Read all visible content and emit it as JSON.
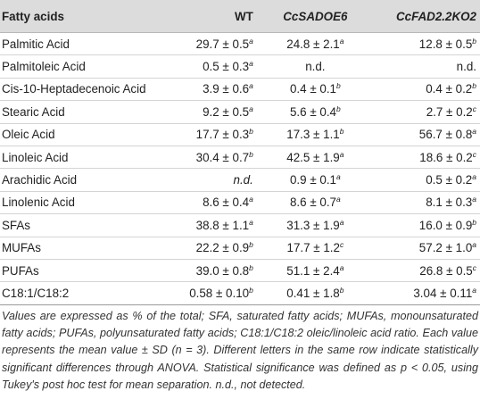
{
  "table": {
    "columns": [
      {
        "label": "Fatty acids"
      },
      {
        "label": "WT"
      },
      {
        "label": "CcSADOE6"
      },
      {
        "label": "CcFAD2.2KO2"
      }
    ],
    "rows": [
      {
        "name": "Palmitic Acid",
        "cells": [
          {
            "text": "29.7 ± 0.5",
            "sup": "a"
          },
          {
            "text": "24.8 ± 2.1",
            "sup": "a"
          },
          {
            "text": "12.8 ± 0.5",
            "sup": "b"
          }
        ]
      },
      {
        "name": "Palmitoleic Acid",
        "cells": [
          {
            "text": "0.5 ± 0.3",
            "sup": "a"
          },
          {
            "text": "n.d."
          },
          {
            "text": "n.d."
          }
        ]
      },
      {
        "name": "Cis-10-Heptadecenoic Acid",
        "cells": [
          {
            "text": "3.9 ± 0.6",
            "sup": "a"
          },
          {
            "text": "0.4 ± 0.1",
            "sup": "b"
          },
          {
            "text": "0.4 ± 0.2",
            "sup": "b"
          }
        ]
      },
      {
        "name": "Stearic Acid",
        "cells": [
          {
            "text": "9.2 ± 0.5",
            "sup": "a"
          },
          {
            "text": "5.6 ± 0.4",
            "sup": "b"
          },
          {
            "text": "2.7 ± 0.2",
            "sup": "c"
          }
        ]
      },
      {
        "name": "Oleic Acid",
        "cells": [
          {
            "text": "17.7 ± 0.3",
            "sup": "b"
          },
          {
            "text": "17.3 ± 1.1",
            "sup": "b"
          },
          {
            "text": "56.7 ± 0.8",
            "sup": "a"
          }
        ]
      },
      {
        "name": "Linoleic Acid",
        "cells": [
          {
            "text": "30.4 ± 0.7",
            "sup": "b"
          },
          {
            "text": "42.5 ± 1.9",
            "sup": "a"
          },
          {
            "text": "18.6 ± 0.2",
            "sup": "c"
          }
        ]
      },
      {
        "name": "Arachidic Acid",
        "cells": [
          {
            "text": "n.d.",
            "italic": true
          },
          {
            "text": "0.9 ± 0.1",
            "sup": "a"
          },
          {
            "text": "0.5 ± 0.2",
            "sup": "a"
          }
        ]
      },
      {
        "name": "Linolenic Acid",
        "cells": [
          {
            "text": "8.6 ± 0.4",
            "sup": "a"
          },
          {
            "text": "8.6 ± 0.7",
            "sup": "a"
          },
          {
            "text": "8.1 ± 0.3",
            "sup": "a"
          }
        ]
      },
      {
        "name": "SFAs",
        "cells": [
          {
            "text": "38.8 ± 1.1",
            "sup": "a"
          },
          {
            "text": "31.3 ± 1.9",
            "sup": "a"
          },
          {
            "text": "16.0 ± 0.9",
            "sup": "b"
          }
        ]
      },
      {
        "name": "MUFAs",
        "cells": [
          {
            "text": "22.2 ± 0.9",
            "sup": "b"
          },
          {
            "text": "17.7 ± 1.2",
            "sup": "c"
          },
          {
            "text": "57.2 ± 1.0",
            "sup": "a"
          }
        ]
      },
      {
        "name": "PUFAs",
        "cells": [
          {
            "text": "39.0 ± 0.8",
            "sup": "b"
          },
          {
            "text": "51.1 ± 2.4",
            "sup": "a"
          },
          {
            "text": "26.8 ± 0.5",
            "sup": "c"
          }
        ]
      },
      {
        "name": "C18:1/C18:2",
        "cells": [
          {
            "text": "0.58 ± 0.10",
            "sup": "b"
          },
          {
            "text": "0.41 ± 1.8",
            "sup": "b"
          },
          {
            "text": "3.04 ± 0.11",
            "sup": "a"
          }
        ]
      }
    ]
  },
  "footnote": "Values are expressed as % of the total; SFA, saturated fatty acids; MUFAs, monounsaturated fatty acids; PUFAs, polyunsaturated fatty acids; C18:1/C18:2 oleic/linoleic acid ratio. Each value represents the mean value ± SD (n = 3). Different letters in the same row indicate statistically significant differences through ANOVA. Statistical significance was defined as p < 0.05, using Tukey's post hoc test for mean separation. n.d., not detected."
}
